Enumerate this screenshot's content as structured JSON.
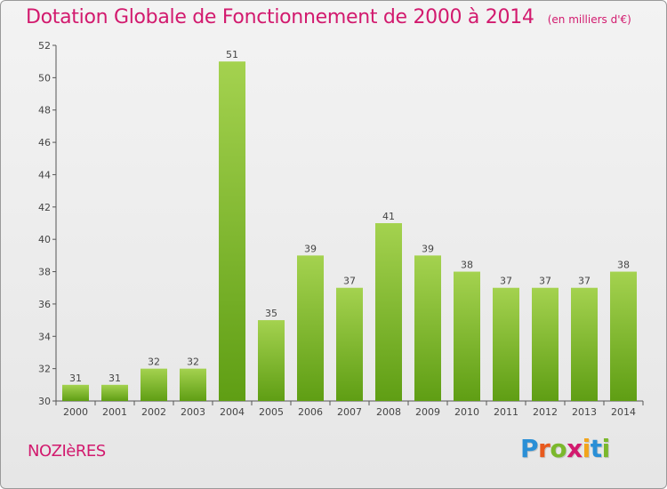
{
  "title": "Dotation Globale de Fonctionnement de 2000 à 2014",
  "subtitle": "(en milliers d'€)",
  "town": "NOZIèRES",
  "logo": {
    "text": "Proxiti",
    "colors": [
      "#2a8fd6",
      "#e85a1e",
      "#7bb82c",
      "#d21a6e",
      "#f2a51c",
      "#2a8fd6",
      "#7bb82c"
    ]
  },
  "colors": {
    "title": "#d21a6e",
    "bar_top": "#a4d24f",
    "bar_bottom": "#5f9e14"
  },
  "chart_data": {
    "type": "bar",
    "categories": [
      "2000",
      "2001",
      "2002",
      "2003",
      "2004",
      "2005",
      "2006",
      "2007",
      "2008",
      "2009",
      "2010",
      "2011",
      "2012",
      "2013",
      "2014"
    ],
    "values": [
      31,
      31,
      32,
      32,
      51,
      35,
      39,
      37,
      41,
      39,
      38,
      37,
      37,
      37,
      38
    ],
    "ylim": [
      30,
      52
    ],
    "yticks": [
      30,
      32,
      34,
      36,
      38,
      40,
      42,
      44,
      46,
      48,
      50,
      52
    ],
    "grid": false,
    "data_labels": true
  }
}
